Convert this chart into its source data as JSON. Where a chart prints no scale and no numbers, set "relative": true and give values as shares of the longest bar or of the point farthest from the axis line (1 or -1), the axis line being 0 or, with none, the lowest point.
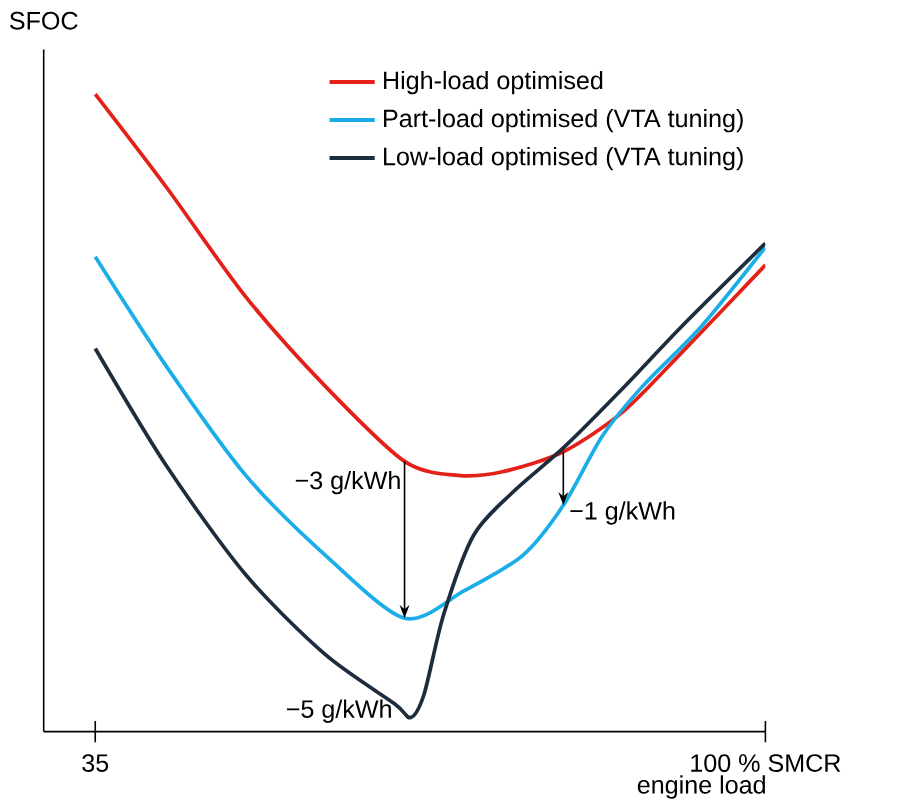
{
  "chart_data": {
    "type": "line",
    "relative": true,
    "ylabel": "SFOC",
    "xlabel": "engine load",
    "xlim": [
      30,
      100
    ],
    "xticks": [
      35,
      {
        "value": 100,
        "label": "100 % SMCR"
      }
    ],
    "legend": "top right",
    "marker": "none",
    "line_style": "solid",
    "grid": false,
    "series": [
      {
        "name": "High-load optimised",
        "color": "#e32119",
        "x": [
          35,
          41.9,
          49.6,
          57.3,
          65.0,
          70.2,
          74.6,
          80.4,
          86.2,
          91.9,
          100
        ],
        "values": [
          1,
          0.854,
          0.682,
          0.542,
          0.424,
          0.402,
          0.408,
          0.439,
          0.502,
          0.595,
          0.732
        ]
      },
      {
        "name": "Part-load optimised (VTA tuning)",
        "color": "#1aaee8",
        "x": [
          35,
          41.9,
          49.6,
          57.3,
          65.0,
          70.8,
          76.5,
          80.4,
          84.2,
          88.1,
          93.8,
          100
        ],
        "values": [
          0.745,
          0.573,
          0.402,
          0.277,
          0.178,
          0.221,
          0.277,
          0.355,
          0.464,
          0.542,
          0.636,
          0.76
        ]
      },
      {
        "name": "Low-load optimised (VTA tuning)",
        "color": "#1d2d3d",
        "x": [
          35,
          41.9,
          49.6,
          57.3,
          64.0,
          65.6,
          66.9,
          68.8,
          71.7,
          75.6,
          80.4,
          86.2,
          91.9,
          100
        ],
        "values": [
          0.601,
          0.417,
          0.246,
          0.121,
          0.044,
          0.022,
          0.059,
          0.184,
          0.308,
          0.377,
          0.445,
          0.539,
          0.636,
          0.766
        ]
      }
    ],
    "annotations": [
      {
        "text": "−3 g/kWh",
        "x": 65,
        "y": 0.424
      },
      {
        "text": "−5 g/kWh",
        "x": 65.6,
        "y": 0.022
      },
      {
        "text": "−1 g/kWh",
        "x": 80.4,
        "y": 0.343
      }
    ]
  }
}
